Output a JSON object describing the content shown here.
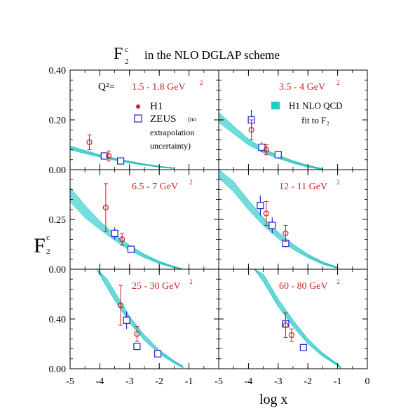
{
  "figure": {
    "title_main": "F",
    "title_sub": "2",
    "title_sup": "c",
    "title_rest": "in the NLO DGLAP scheme",
    "ylabel_main": "F",
    "ylabel_sub": "2",
    "ylabel_sup": "c",
    "xlabel": "log x"
  },
  "legend": {
    "q2_label": "Q²=",
    "h1": "H1",
    "zeus": "ZEUS",
    "zeus_note_1": "(no",
    "zeus_note_2": "extrapolation",
    "zeus_note_3": "uncertainty)",
    "fit_line1": "H1 NLO QCD",
    "fit_line2": "fit to F₂"
  },
  "colors": {
    "h1": "#cc2222",
    "zeus": "#2222cc",
    "band": "#22cccc",
    "label_red": "#cc2222",
    "axis": "#000000"
  },
  "chart_data": {
    "type": "scatter",
    "x_axis": {
      "range": [
        -5,
        0
      ],
      "ticks": [
        -5,
        -4,
        -3,
        -2,
        -1,
        0
      ],
      "tick_labels_bottom_left": [
        "-5",
        "-4",
        "-3",
        "-2",
        "-1"
      ],
      "tick_labels_bottom_right": [
        "-5",
        "-4",
        "-3",
        "-2",
        "-1",
        "0"
      ]
    },
    "panels": [
      {
        "id": "p1",
        "row": 0,
        "col": 0,
        "label_value": "1.5 - 1.8 GeV",
        "label_unit_sup": "2",
        "ylim": [
          0,
          0.4
        ],
        "yticks": [
          0,
          0.2,
          0.4
        ],
        "ytick_labels": [
          "0.00",
          "0.20",
          "0.40"
        ],
        "h1": [
          {
            "x": -4.35,
            "y": 0.11,
            "err": 0.03
          },
          {
            "x": -3.7,
            "y": 0.055,
            "err": 0.02
          }
        ],
        "zeus": [
          {
            "x": -3.85,
            "y": 0.055,
            "err": 0.01
          },
          {
            "x": -3.3,
            "y": 0.035,
            "err": 0.008
          }
        ],
        "band": {
          "x": [
            -5,
            -4.5,
            -4,
            -3.5,
            -3,
            -2.5,
            -2,
            -1.5
          ],
          "lo": [
            0.08,
            0.065,
            0.05,
            0.038,
            0.027,
            0.018,
            0.01,
            0.004
          ],
          "hi": [
            0.095,
            0.077,
            0.06,
            0.046,
            0.034,
            0.023,
            0.014,
            0.007
          ]
        }
      },
      {
        "id": "p2",
        "row": 0,
        "col": 1,
        "label_value": "3.5 - 4 GeV",
        "label_unit_sup": "2",
        "ylim": [
          0,
          0.4
        ],
        "yticks": [
          0,
          0.2,
          0.4
        ],
        "ytick_labels": [],
        "h1": [
          {
            "x": -3.9,
            "y": 0.16,
            "err": 0.04
          },
          {
            "x": -3.4,
            "y": 0.08,
            "err": 0.02
          }
        ],
        "zeus": [
          {
            "x": -3.9,
            "y": 0.2,
            "err": 0.04
          },
          {
            "x": -3.55,
            "y": 0.09,
            "err": 0.02
          },
          {
            "x": -3.0,
            "y": 0.06,
            "err": 0.01
          }
        ],
        "band": {
          "x": [
            -5,
            -4.5,
            -4,
            -3.5,
            -3,
            -2.5,
            -2,
            -1.5
          ],
          "lo": [
            0.19,
            0.145,
            0.1,
            0.068,
            0.045,
            0.026,
            0.01,
            0.0
          ],
          "hi": [
            0.23,
            0.175,
            0.123,
            0.085,
            0.058,
            0.036,
            0.018,
            0.004
          ]
        }
      },
      {
        "id": "p3",
        "row": 1,
        "col": 0,
        "label_value": "6.5 - 7 GeV",
        "label_unit_sup": "2",
        "ylim": [
          0,
          0.5
        ],
        "yticks": [
          0,
          0.25,
          0.5
        ],
        "ytick_labels": [
          "0.00",
          "0.25"
        ],
        "h1": [
          {
            "x": -3.8,
            "y": 0.31,
            "err": 0.12
          },
          {
            "x": -3.25,
            "y": 0.15,
            "err": 0.03
          }
        ],
        "zeus": [
          {
            "x": -3.5,
            "y": 0.18,
            "err": 0.03
          },
          {
            "x": -2.95,
            "y": 0.1,
            "err": 0.01
          }
        ],
        "band": {
          "x": [
            -5,
            -4.5,
            -4,
            -3.5,
            -3,
            -2.5,
            -2,
            -1.5,
            -1.25
          ],
          "lo": [
            0.34,
            0.26,
            0.2,
            0.145,
            0.095,
            0.058,
            0.028,
            0.007,
            0.0
          ],
          "hi": [
            0.41,
            0.32,
            0.24,
            0.175,
            0.12,
            0.075,
            0.04,
            0.013,
            0.004
          ]
        }
      },
      {
        "id": "p4",
        "row": 1,
        "col": 1,
        "label_value": "12 - 11 GeV",
        "label_unit_sup": "2",
        "ylim": [
          0,
          0.5
        ],
        "yticks": [
          0,
          0.25,
          0.5
        ],
        "ytick_labels": [],
        "h1": [
          {
            "x": -3.4,
            "y": 0.28,
            "err": 0.06
          },
          {
            "x": -2.75,
            "y": 0.18,
            "err": 0.04
          }
        ],
        "zeus": [
          {
            "x": -3.6,
            "y": 0.32,
            "err": 0.05
          },
          {
            "x": -3.2,
            "y": 0.22,
            "err": 0.04
          },
          {
            "x": -2.75,
            "y": 0.13,
            "err": 0.02
          }
        ],
        "band": {
          "x": [
            -5,
            -4.5,
            -4,
            -3.5,
            -3,
            -2.5,
            -2,
            -1.5,
            -1.0
          ],
          "lo": [
            0.46,
            0.39,
            0.3,
            0.22,
            0.155,
            0.1,
            0.058,
            0.025,
            0.004
          ],
          "hi": [
            0.5,
            0.44,
            0.345,
            0.26,
            0.185,
            0.125,
            0.075,
            0.037,
            0.01
          ]
        }
      },
      {
        "id": "p5",
        "row": 2,
        "col": 0,
        "label_value": "25 - 30 GeV",
        "label_unit_sup": "2",
        "ylim": [
          0,
          0.8
        ],
        "yticks": [
          0,
          0.4,
          0.8
        ],
        "ytick_labels": [
          "0.00",
          "0.40"
        ],
        "h1": [
          {
            "x": -3.3,
            "y": 0.51,
            "err": 0.16
          },
          {
            "x": -2.75,
            "y": 0.28,
            "err": 0.06
          }
        ],
        "zeus": [
          {
            "x": -3.1,
            "y": 0.39,
            "err": 0.07
          },
          {
            "x": -2.75,
            "y": 0.18,
            "err": 0.02
          },
          {
            "x": -2.05,
            "y": 0.12,
            "err": 0.01
          }
        ],
        "band": {
          "x": [
            -4.1,
            -3.75,
            -3.5,
            -3,
            -2.5,
            -2,
            -1.5,
            -1.2
          ],
          "lo": [
            0.8,
            0.65,
            0.55,
            0.37,
            0.23,
            0.12,
            0.045,
            0.008
          ],
          "hi": [
            0.8,
            0.72,
            0.62,
            0.42,
            0.27,
            0.15,
            0.065,
            0.02
          ]
        }
      },
      {
        "id": "p6",
        "row": 2,
        "col": 1,
        "label_value": "60 - 80 GeV",
        "label_unit_sup": "2",
        "ylim": [
          0,
          0.8
        ],
        "yticks": [
          0,
          0.4,
          0.8
        ],
        "ytick_labels": [],
        "h1": [
          {
            "x": -2.75,
            "y": 0.35,
            "err": 0.1
          },
          {
            "x": -2.55,
            "y": 0.27,
            "err": 0.05
          }
        ],
        "zeus": [
          {
            "x": -2.75,
            "y": 0.36,
            "err": 0.05
          },
          {
            "x": -2.15,
            "y": 0.17,
            "err": 0.02
          }
        ],
        "band": {
          "x": [
            -3.8,
            -3.5,
            -3,
            -2.5,
            -2,
            -1.5,
            -1.0,
            -0.9
          ],
          "lo": [
            0.8,
            0.7,
            0.5,
            0.34,
            0.2,
            0.1,
            0.025,
            0.005
          ],
          "hi": [
            0.8,
            0.76,
            0.56,
            0.39,
            0.24,
            0.125,
            0.04,
            0.015
          ]
        }
      }
    ]
  }
}
